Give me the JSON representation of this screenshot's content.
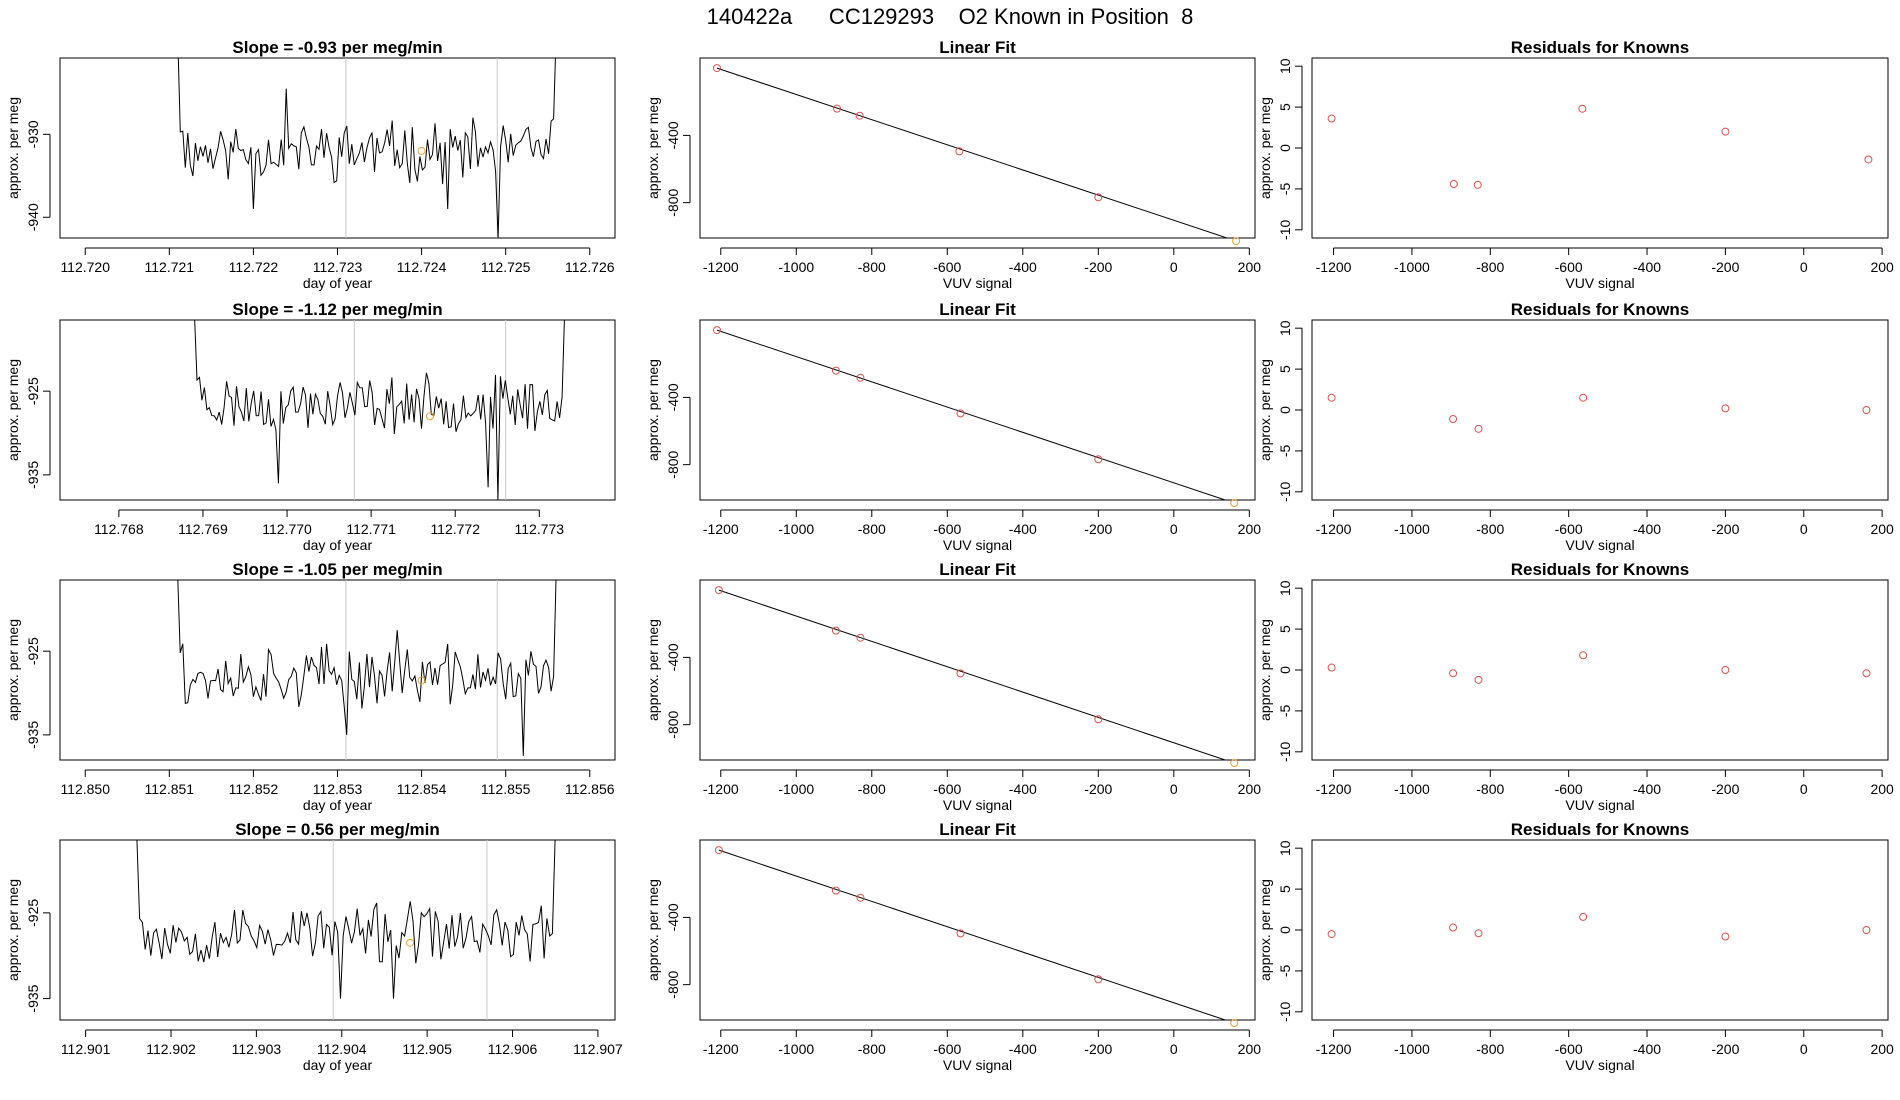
{
  "figure": {
    "title": "140422a      CC129293    O2 Known in Position  8"
  },
  "colors": {
    "trace": "#000000",
    "marker": "#e6a23c",
    "residual_point": "#d9534f",
    "gridline": "#c8c8c8",
    "frame": "#000000"
  },
  "chart_data": [
    {
      "type": "line",
      "row": 0,
      "title": "Slope =  -0.93  per meg/min",
      "xlabel": "day of year",
      "ylabel": "approx. per meg",
      "xlim": [
        112.7197,
        112.7263
      ],
      "ylim": [
        -942.5,
        -920.8
      ],
      "xticks": [
        112.72,
        112.721,
        112.722,
        112.723,
        112.724,
        112.725,
        112.726
      ],
      "xtick_labels": [
        "112.720",
        "112.721",
        "112.722",
        "112.723",
        "112.724",
        "112.725",
        "112.726"
      ],
      "yticks": [
        -930,
        -940
      ],
      "ytick_labels": [
        "-930",
        "-940"
      ],
      "vlines": [
        112.7231,
        112.7249
      ],
      "marker_point": {
        "x": 112.724,
        "y": -932.0
      },
      "trace_x_range": [
        112.7211,
        112.7256
      ],
      "trace_left_edge": [
        -918.0,
        -929.0
      ],
      "trace_right_edge": [
        -929.5,
        -918.0
      ],
      "trace_base": -932.0,
      "trace_amp": 2.8,
      "trace_spikes": [
        [
          112.7249,
          -942.5
        ],
        [
          112.7224,
          -924.5
        ],
        [
          112.722,
          -939.0
        ],
        [
          112.7243,
          -939.0
        ]
      ],
      "seed": 11
    },
    {
      "type": "scatter",
      "row": 0,
      "title": "Linear Fit",
      "xlabel": "VUV signal",
      "ylabel": "approx. per meg",
      "xlim": [
        -1255,
        215
      ],
      "ylim": [
        -1010,
        60
      ],
      "xticks": [
        -1200,
        -1000,
        -800,
        -600,
        -400,
        -200,
        0,
        200
      ],
      "xtick_labels": [
        "-1200",
        "-1000",
        "-800",
        "-600",
        "-400",
        "-200",
        "0",
        "200"
      ],
      "yticks": [
        -400,
        -800
      ],
      "ytick_labels": [
        "-400",
        "-800"
      ],
      "fit_line": [
        [
          -1210,
          0
        ],
        [
          165,
          -1028
        ]
      ],
      "points": [
        {
          "x": -1210,
          "y": 0
        },
        {
          "x": -892,
          "y": -241
        },
        {
          "x": -832,
          "y": -283
        },
        {
          "x": -568,
          "y": -495
        },
        {
          "x": -200,
          "y": -768
        },
        {
          "x": 165,
          "y": -1028
        }
      ]
    },
    {
      "type": "scatter",
      "row": 0,
      "title": "Residuals for Knowns",
      "xlabel": "VUV signal",
      "ylabel": "approx. per meg",
      "xlim": [
        -1255,
        215
      ],
      "ylim": [
        -11,
        11
      ],
      "xticks": [
        -1200,
        -1000,
        -800,
        -600,
        -400,
        -200,
        0,
        200
      ],
      "xtick_labels": [
        "-1200",
        "-1000",
        "-800",
        "-600",
        "-400",
        "-200",
        "0",
        "200"
      ],
      "yticks": [
        10,
        5,
        0,
        -5,
        -10
      ],
      "ytick_labels": [
        "10",
        "5",
        "0",
        "-5",
        "-10"
      ],
      "points": [
        {
          "x": -1205,
          "y": 3.6
        },
        {
          "x": -893,
          "y": -4.4
        },
        {
          "x": -832,
          "y": -4.5
        },
        {
          "x": -565,
          "y": 4.8
        },
        {
          "x": -200,
          "y": 2.0
        },
        {
          "x": 165,
          "y": -1.4
        }
      ]
    },
    {
      "type": "line",
      "row": 1,
      "title": "Slope =  -1.12  per meg/min",
      "xlabel": "day of year",
      "ylabel": "approx. per meg",
      "xlim": [
        112.7673,
        112.7739
      ],
      "ylim": [
        -938.0,
        -916.5
      ],
      "xticks": [
        112.768,
        112.769,
        112.77,
        112.771,
        112.772,
        112.773
      ],
      "xtick_labels": [
        "112.768",
        "112.769",
        "112.770",
        "112.771",
        "112.772",
        "112.773"
      ],
      "yticks": [
        -925,
        -935
      ],
      "ytick_labels": [
        "-925",
        "-935"
      ],
      "vlines": [
        112.7708,
        112.7726
      ],
      "marker_point": {
        "x": 112.7717,
        "y": -928.0
      },
      "trace_x_range": [
        112.7689,
        112.7733
      ],
      "trace_left_edge": [
        -916.0,
        -923.0
      ],
      "trace_right_edge": [
        -927.0,
        -916.0
      ],
      "trace_base": -926.5,
      "trace_amp": 2.6,
      "trace_spikes": [
        [
          112.7699,
          -936.0
        ],
        [
          112.7725,
          -938.0
        ],
        [
          112.7724,
          -936.5
        ]
      ],
      "seed": 23
    },
    {
      "type": "scatter",
      "row": 1,
      "title": "Linear Fit",
      "xlabel": "VUV signal",
      "ylabel": "approx. per meg",
      "xlim": [
        -1255,
        215
      ],
      "ylim": [
        -1010,
        60
      ],
      "xticks": [
        -1200,
        -1000,
        -800,
        -600,
        -400,
        -200,
        0,
        200
      ],
      "xtick_labels": [
        "-1200",
        "-1000",
        "-800",
        "-600",
        "-400",
        "-200",
        "0",
        "200"
      ],
      "yticks": [
        -400,
        -800
      ],
      "ytick_labels": [
        "-400",
        "-800"
      ],
      "fit_line": [
        [
          -1210,
          0
        ],
        [
          160,
          -1028
        ]
      ],
      "points": [
        {
          "x": -1210,
          "y": 0
        },
        {
          "x": -895,
          "y": -241
        },
        {
          "x": -830,
          "y": -283
        },
        {
          "x": -565,
          "y": -495
        },
        {
          "x": -200,
          "y": -768
        },
        {
          "x": 160,
          "y": -1028
        }
      ]
    },
    {
      "type": "scatter",
      "row": 1,
      "title": "Residuals for Knowns",
      "xlabel": "VUV signal",
      "ylabel": "approx. per meg",
      "xlim": [
        -1255,
        215
      ],
      "ylim": [
        -11,
        11
      ],
      "xticks": [
        -1200,
        -1000,
        -800,
        -600,
        -400,
        -200,
        0,
        200
      ],
      "xtick_labels": [
        "-1200",
        "-1000",
        "-800",
        "-600",
        "-400",
        "-200",
        "0",
        "200"
      ],
      "yticks": [
        10,
        5,
        0,
        -5,
        -10
      ],
      "ytick_labels": [
        "10",
        "5",
        "0",
        "-5",
        "-10"
      ],
      "points": [
        {
          "x": -1205,
          "y": 1.5
        },
        {
          "x": -895,
          "y": -1.1
        },
        {
          "x": -830,
          "y": -2.3
        },
        {
          "x": -563,
          "y": 1.5
        },
        {
          "x": -200,
          "y": 0.2
        },
        {
          "x": 160,
          "y": 0.0
        }
      ]
    },
    {
      "type": "line",
      "row": 2,
      "title": "Slope =  -1.05  per meg/min",
      "xlabel": "day of year",
      "ylabel": "approx. per meg",
      "xlim": [
        112.8497,
        112.8563
      ],
      "ylim": [
        -938.0,
        -916.5
      ],
      "xticks": [
        112.85,
        112.851,
        112.852,
        112.853,
        112.854,
        112.855,
        112.856
      ],
      "xtick_labels": [
        "112.850",
        "112.851",
        "112.852",
        "112.853",
        "112.854",
        "112.855",
        "112.856"
      ],
      "yticks": [
        -925,
        -935
      ],
      "ytick_labels": [
        "-925",
        "-935"
      ],
      "vlines": [
        112.8531,
        112.8549
      ],
      "marker_point": {
        "x": 112.854,
        "y": -928.5
      },
      "trace_x_range": [
        112.8511,
        112.8556
      ],
      "trace_left_edge": [
        -916.0,
        -924.5
      ],
      "trace_right_edge": [
        -929.0,
        -916.0
      ],
      "trace_base": -928.0,
      "trace_amp": 2.8,
      "trace_spikes": [
        [
          112.8552,
          -937.5
        ],
        [
          112.8531,
          -935.0
        ],
        [
          112.8537,
          -922.5
        ]
      ],
      "seed": 37
    },
    {
      "type": "scatter",
      "row": 2,
      "title": "Linear Fit",
      "xlabel": "VUV signal",
      "ylabel": "approx. per meg",
      "xlim": [
        -1255,
        215
      ],
      "ylim": [
        -1010,
        60
      ],
      "xticks": [
        -1200,
        -1000,
        -800,
        -600,
        -400,
        -200,
        0,
        200
      ],
      "xtick_labels": [
        "-1200",
        "-1000",
        "-800",
        "-600",
        "-400",
        "-200",
        "0",
        "200"
      ],
      "yticks": [
        -400,
        -800
      ],
      "ytick_labels": [
        "-400",
        "-800"
      ],
      "fit_line": [
        [
          -1205,
          0
        ],
        [
          160,
          -1028
        ]
      ],
      "points": [
        {
          "x": -1205,
          "y": 0
        },
        {
          "x": -895,
          "y": -241
        },
        {
          "x": -830,
          "y": -283
        },
        {
          "x": -565,
          "y": -495
        },
        {
          "x": -200,
          "y": -768
        },
        {
          "x": 160,
          "y": -1028
        }
      ]
    },
    {
      "type": "scatter",
      "row": 2,
      "title": "Residuals for Knowns",
      "xlabel": "VUV signal",
      "ylabel": "approx. per meg",
      "xlim": [
        -1255,
        215
      ],
      "ylim": [
        -11,
        11
      ],
      "xticks": [
        -1200,
        -1000,
        -800,
        -600,
        -400,
        -200,
        0,
        200
      ],
      "xtick_labels": [
        "-1200",
        "-1000",
        "-800",
        "-600",
        "-400",
        "-200",
        "0",
        "200"
      ],
      "yticks": [
        10,
        5,
        0,
        -5,
        -10
      ],
      "ytick_labels": [
        "10",
        "5",
        "0",
        "-5",
        "-10"
      ],
      "points": [
        {
          "x": -1205,
          "y": 0.3
        },
        {
          "x": -895,
          "y": -0.4
        },
        {
          "x": -830,
          "y": -1.2
        },
        {
          "x": -563,
          "y": 1.8
        },
        {
          "x": -200,
          "y": 0.0
        },
        {
          "x": 160,
          "y": -0.4
        }
      ]
    },
    {
      "type": "line",
      "row": 3,
      "title": "Slope =  0.56  per meg/min",
      "xlabel": "day of year",
      "ylabel": "approx. per meg",
      "xlim": [
        112.9007,
        112.9072
      ],
      "ylim": [
        -937.5,
        -916.5
      ],
      "xticks": [
        112.901,
        112.902,
        112.903,
        112.904,
        112.905,
        112.906,
        112.907
      ],
      "xtick_labels": [
        "112.901",
        "112.902",
        "112.903",
        "112.904",
        "112.905",
        "112.906",
        "112.907"
      ],
      "yticks": [
        -925,
        -935
      ],
      "ytick_labels": [
        "-925",
        "-935"
      ],
      "vlines": [
        112.9039,
        112.9057
      ],
      "marker_point": {
        "x": 112.9048,
        "y": -928.5
      },
      "trace_x_range": [
        112.9016,
        112.9065
      ],
      "trace_left_edge": [
        -916.0,
        -925.0
      ],
      "trace_right_edge": [
        -927.5,
        -916.0
      ],
      "trace_base": -927.5,
      "trace_amp": 2.7,
      "trace_spikes": [
        [
          112.904,
          -935.0
        ],
        [
          112.9046,
          -935.0
        ],
        [
          112.9036,
          -925.0
        ]
      ],
      "seed": 53
    },
    {
      "type": "scatter",
      "row": 3,
      "title": "Linear Fit",
      "xlabel": "VUV signal",
      "ylabel": "approx. per meg",
      "xlim": [
        -1255,
        215
      ],
      "ylim": [
        -1010,
        60
      ],
      "xticks": [
        -1200,
        -1000,
        -800,
        -600,
        -400,
        -200,
        0,
        200
      ],
      "xtick_labels": [
        "-1200",
        "-1000",
        "-800",
        "-600",
        "-400",
        "-200",
        "0",
        "200"
      ],
      "yticks": [
        -400,
        -800
      ],
      "ytick_labels": [
        "-400",
        "-800"
      ],
      "fit_line": [
        [
          -1205,
          0
        ],
        [
          160,
          -1028
        ]
      ],
      "points": [
        {
          "x": -1205,
          "y": 0
        },
        {
          "x": -895,
          "y": -241
        },
        {
          "x": -830,
          "y": -283
        },
        {
          "x": -565,
          "y": -495
        },
        {
          "x": -200,
          "y": -768
        },
        {
          "x": 160,
          "y": -1028
        }
      ]
    },
    {
      "type": "scatter",
      "row": 3,
      "title": "Residuals for Knowns",
      "xlabel": "VUV signal",
      "ylabel": "approx. per meg",
      "xlim": [
        -1255,
        215
      ],
      "ylim": [
        -11,
        11
      ],
      "xticks": [
        -1200,
        -1000,
        -800,
        -600,
        -400,
        -200,
        0,
        200
      ],
      "xtick_labels": [
        "-1200",
        "-1000",
        "-800",
        "-600",
        "-400",
        "-200",
        "0",
        "200"
      ],
      "yticks": [
        10,
        5,
        0,
        -5,
        -10
      ],
      "ytick_labels": [
        "10",
        "5",
        "0",
        "-5",
        "-10"
      ],
      "points": [
        {
          "x": -1205,
          "y": -0.5
        },
        {
          "x": -895,
          "y": 0.3
        },
        {
          "x": -830,
          "y": -0.4
        },
        {
          "x": -563,
          "y": 1.6
        },
        {
          "x": -200,
          "y": -0.8
        },
        {
          "x": 160,
          "y": 0.0
        }
      ]
    }
  ]
}
